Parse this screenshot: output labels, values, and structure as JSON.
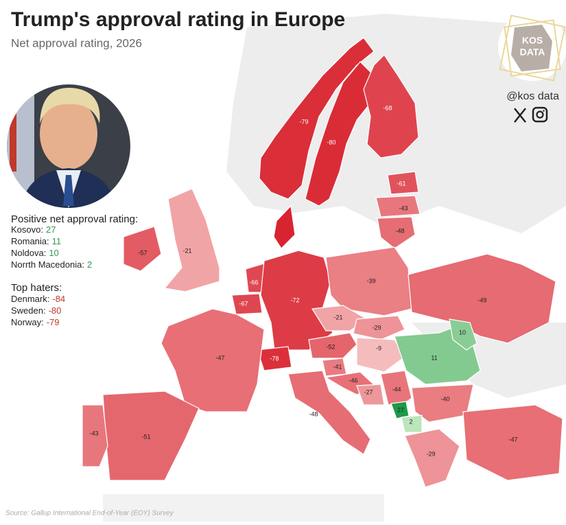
{
  "header": {
    "title": "Trump's approval rating in Europe",
    "subtitle": "Net approval rating, 2026"
  },
  "brand": {
    "logo_lines": [
      "KOS",
      "DATA"
    ],
    "handle": "@kos data"
  },
  "positive": {
    "heading": "Positive net approval rating:",
    "items": [
      {
        "label": "Kosovo:",
        "value": 27
      },
      {
        "label": "Romania:",
        "value": 11
      },
      {
        "label": "Noldova:",
        "value": 10
      },
      {
        "label": "Norrth Macedonia:",
        "value": 2
      }
    ]
  },
  "haters": {
    "heading": "Top haters:",
    "items": [
      {
        "label": "Denmark:",
        "value": -84
      },
      {
        "label": "Sweden:",
        "value": -80
      },
      {
        "label": "Norway:",
        "value": -79
      }
    ]
  },
  "map": {
    "labels": [
      -79,
      -80,
      -68,
      -61,
      -43,
      -48,
      -57,
      -21,
      -66,
      -67,
      -72,
      -39,
      -49,
      -21,
      -29,
      -52,
      -9,
      -78,
      -41,
      -46,
      -27,
      -44,
      11,
      10,
      -40,
      27,
      2,
      -29,
      -47,
      -47,
      -51,
      -43,
      -48
    ]
  },
  "source": "Source: Gallup International End-of-Year (EOY) Survey"
}
